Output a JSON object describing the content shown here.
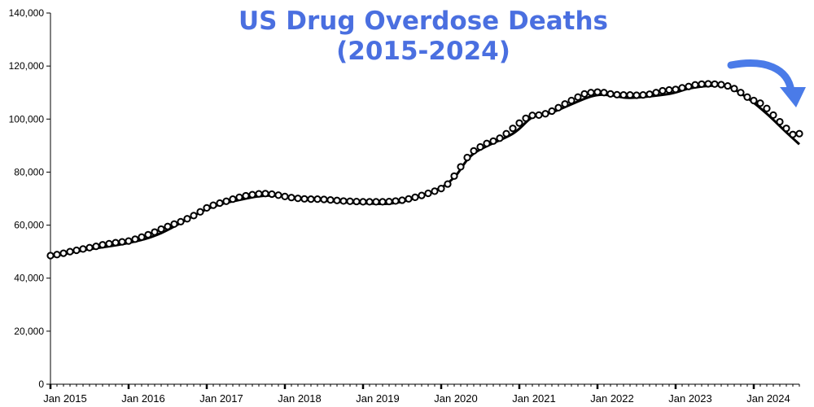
{
  "chart_data": {
    "type": "line",
    "title_lines": [
      "US Drug Overdose Deaths",
      "(2015-2024)"
    ],
    "xlabel": "",
    "ylabel": "",
    "ylim": [
      0,
      140000
    ],
    "y_ticks": [
      0,
      20000,
      40000,
      60000,
      80000,
      100000,
      120000,
      140000
    ],
    "y_tick_labels": [
      "0",
      "20,000",
      "40,000",
      "60,000",
      "80,000",
      "100,000",
      "120,000",
      "140,000"
    ],
    "x_range": [
      "2015-01",
      "2024-08"
    ],
    "x_ticks": [
      "2015-01",
      "2016-01",
      "2017-01",
      "2018-01",
      "2019-01",
      "2020-01",
      "2021-01",
      "2022-01",
      "2023-01",
      "2024-01"
    ],
    "x_tick_labels": [
      "Jan 2015",
      "Jan 2016",
      "Jan 2017",
      "Jan 2018",
      "Jan 2019",
      "Jan 2020",
      "Jan 2021",
      "Jan 2022",
      "Jan 2023",
      "Jan 2024"
    ],
    "grid": false,
    "colors": {
      "title": "#4a6fe0",
      "arrow": "#4a7be8",
      "series": "#000000"
    },
    "annotation": {
      "type": "arrow",
      "direction": "down-right",
      "icon": "curved-arrow-icon"
    },
    "series": [
      {
        "style": "markers",
        "x": [
          "2015-01",
          "2015-02",
          "2015-03",
          "2015-04",
          "2015-05",
          "2015-06",
          "2015-07",
          "2015-08",
          "2015-09",
          "2015-10",
          "2015-11",
          "2015-12",
          "2016-01",
          "2016-02",
          "2016-03",
          "2016-04",
          "2016-05",
          "2016-06",
          "2016-07",
          "2016-08",
          "2016-09",
          "2016-10",
          "2016-11",
          "2016-12",
          "2017-01",
          "2017-02",
          "2017-03",
          "2017-04",
          "2017-05",
          "2017-06",
          "2017-07",
          "2017-08",
          "2017-09",
          "2017-10",
          "2017-11",
          "2017-12",
          "2018-01",
          "2018-02",
          "2018-03",
          "2018-04",
          "2018-05",
          "2018-06",
          "2018-07",
          "2018-08",
          "2018-09",
          "2018-10",
          "2018-11",
          "2018-12",
          "2019-01",
          "2019-02",
          "2019-03",
          "2019-04",
          "2019-05",
          "2019-06",
          "2019-07",
          "2019-08",
          "2019-09",
          "2019-10",
          "2019-11",
          "2019-12",
          "2020-01",
          "2020-02",
          "2020-03",
          "2020-04",
          "2020-05",
          "2020-06",
          "2020-07",
          "2020-08",
          "2020-09",
          "2020-10",
          "2020-11",
          "2020-12",
          "2021-01",
          "2021-02",
          "2021-03",
          "2021-04",
          "2021-05",
          "2021-06",
          "2021-07",
          "2021-08",
          "2021-09",
          "2021-10",
          "2021-11",
          "2021-12",
          "2022-01",
          "2022-02",
          "2022-03",
          "2022-04",
          "2022-05",
          "2022-06",
          "2022-07",
          "2022-08",
          "2022-09",
          "2022-10",
          "2022-11",
          "2022-12",
          "2023-01",
          "2023-02",
          "2023-03",
          "2023-04",
          "2023-05",
          "2023-06",
          "2023-07",
          "2023-08",
          "2023-09",
          "2023-10",
          "2023-11",
          "2023-12",
          "2024-01",
          "2024-02",
          "2024-03",
          "2024-04",
          "2024-05",
          "2024-06",
          "2024-07",
          "2024-08"
        ],
        "y": [
          48500,
          48900,
          49400,
          50000,
          50500,
          51000,
          51500,
          52000,
          52600,
          53000,
          53400,
          53700,
          54000,
          54700,
          55500,
          56400,
          57400,
          58500,
          59500,
          60400,
          61300,
          62400,
          63600,
          65000,
          66500,
          67500,
          68300,
          69000,
          69800,
          70500,
          71100,
          71500,
          71800,
          71900,
          71700,
          71300,
          70800,
          70400,
          70100,
          69900,
          69800,
          69800,
          69700,
          69500,
          69300,
          69100,
          69000,
          68900,
          68800,
          68800,
          68800,
          68800,
          68900,
          69100,
          69400,
          69900,
          70500,
          71200,
          72000,
          72800,
          73800,
          75500,
          78500,
          82000,
          85500,
          88000,
          89500,
          90800,
          91700,
          92800,
          94500,
          96500,
          98500,
          100300,
          101400,
          101500,
          102000,
          103000,
          104300,
          105700,
          107000,
          108300,
          109500,
          110000,
          110200,
          110000,
          109500,
          109200,
          109100,
          109100,
          109000,
          109100,
          109400,
          110000,
          110700,
          111000,
          111200,
          111800,
          112300,
          112900,
          113200,
          113300,
          113200,
          113000,
          112500,
          111500,
          110000,
          108300,
          107000,
          106000,
          104000,
          101500,
          99000,
          96500,
          94200,
          94500
        ]
      },
      {
        "style": "line",
        "x": [
          "2015-01",
          "2015-06",
          "2016-01",
          "2016-06",
          "2017-01",
          "2017-06",
          "2017-11",
          "2018-06",
          "2018-12",
          "2019-06",
          "2019-12",
          "2020-03",
          "2020-06",
          "2020-12",
          "2021-03",
          "2021-06",
          "2021-12",
          "2022-03",
          "2022-06",
          "2022-12",
          "2023-03",
          "2023-06",
          "2023-09",
          "2023-12",
          "2024-03",
          "2024-06",
          "2024-08"
        ],
        "y": [
          48000,
          50500,
          53300,
          57000,
          66000,
          69500,
          71200,
          69500,
          68400,
          68400,
          73000,
          78000,
          87000,
          94500,
          100700,
          102500,
          108500,
          109000,
          108000,
          109500,
          111500,
          112500,
          112300,
          108000,
          102000,
          95000,
          90500
        ]
      }
    ]
  }
}
